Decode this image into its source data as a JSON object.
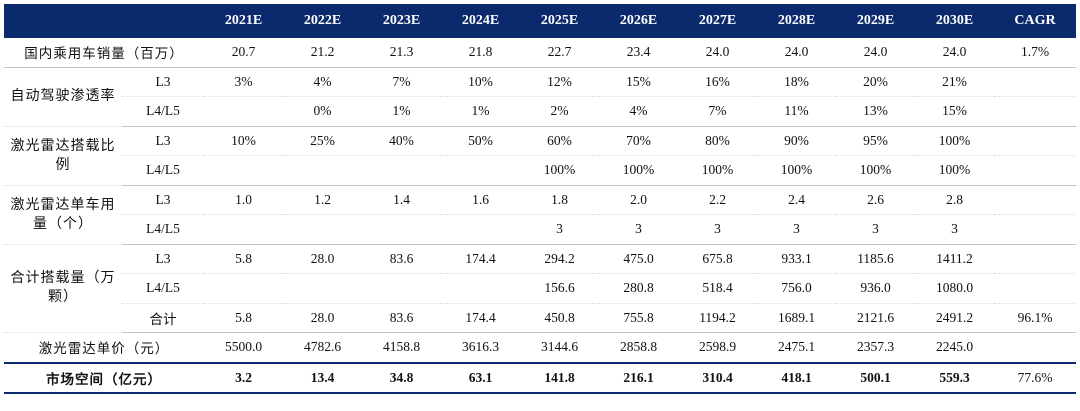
{
  "header": {
    "years": [
      "2021E",
      "2022E",
      "2023E",
      "2024E",
      "2025E",
      "2026E",
      "2027E",
      "2028E",
      "2029E",
      "2030E"
    ],
    "cagr": "CAGR"
  },
  "rows": {
    "sales": {
      "label": "国内乘用车销量（百万）",
      "values": [
        "20.7",
        "21.2",
        "21.3",
        "21.8",
        "22.7",
        "23.4",
        "24.0",
        "24.0",
        "24.0",
        "24.0"
      ],
      "cagr": "1.7%"
    },
    "penetration": {
      "label": "自动驾驶渗透率",
      "l3": {
        "sub": "L3",
        "values": [
          "3%",
          "4%",
          "7%",
          "10%",
          "12%",
          "15%",
          "16%",
          "18%",
          "20%",
          "21%"
        ]
      },
      "l45": {
        "sub": "L4/L5",
        "values": [
          "",
          "0%",
          "1%",
          "1%",
          "2%",
          "4%",
          "7%",
          "11%",
          "13%",
          "15%"
        ]
      }
    },
    "lidar_ratio": {
      "label": "激光雷达搭载比例",
      "l3": {
        "sub": "L3",
        "values": [
          "10%",
          "25%",
          "40%",
          "50%",
          "60%",
          "70%",
          "80%",
          "90%",
          "95%",
          "100%"
        ]
      },
      "l45": {
        "sub": "L4/L5",
        "values": [
          "",
          "",
          "",
          "",
          "100%",
          "100%",
          "100%",
          "100%",
          "100%",
          "100%"
        ]
      }
    },
    "lidar_per_car": {
      "label": "激光雷达单车用量（个）",
      "l3": {
        "sub": "L3",
        "values": [
          "1.0",
          "1.2",
          "1.4",
          "1.6",
          "1.8",
          "2.0",
          "2.2",
          "2.4",
          "2.6",
          "2.8"
        ]
      },
      "l45": {
        "sub": "L4/L5",
        "values": [
          "",
          "",
          "",
          "",
          "3",
          "3",
          "3",
          "3",
          "3",
          "3"
        ]
      }
    },
    "total_install": {
      "label": "合计搭载量（万颗）",
      "l3": {
        "sub": "L3",
        "values": [
          "5.8",
          "28.0",
          "83.6",
          "174.4",
          "294.2",
          "475.0",
          "675.8",
          "933.1",
          "1185.6",
          "1411.2"
        ]
      },
      "l45": {
        "sub": "L4/L5",
        "values": [
          "",
          "",
          "",
          "",
          "156.6",
          "280.8",
          "518.4",
          "756.0",
          "936.0",
          "1080.0"
        ]
      },
      "total": {
        "sub": "合计",
        "values": [
          "5.8",
          "28.0",
          "83.6",
          "174.4",
          "450.8",
          "755.8",
          "1194.2",
          "1689.1",
          "2121.6",
          "2491.2"
        ],
        "cagr": "96.1%"
      }
    },
    "unit_price": {
      "label": "激光雷达单价（元）",
      "values": [
        "5500.0",
        "4782.6",
        "4158.8",
        "3616.3",
        "3144.6",
        "2858.8",
        "2598.9",
        "2475.1",
        "2357.3",
        "2245.0"
      ]
    },
    "market": {
      "label": "市场空间（亿元）",
      "values": [
        "3.2",
        "13.4",
        "34.8",
        "63.1",
        "141.8",
        "216.1",
        "310.4",
        "418.1",
        "500.1",
        "559.3"
      ],
      "cagr": "77.6%"
    }
  }
}
